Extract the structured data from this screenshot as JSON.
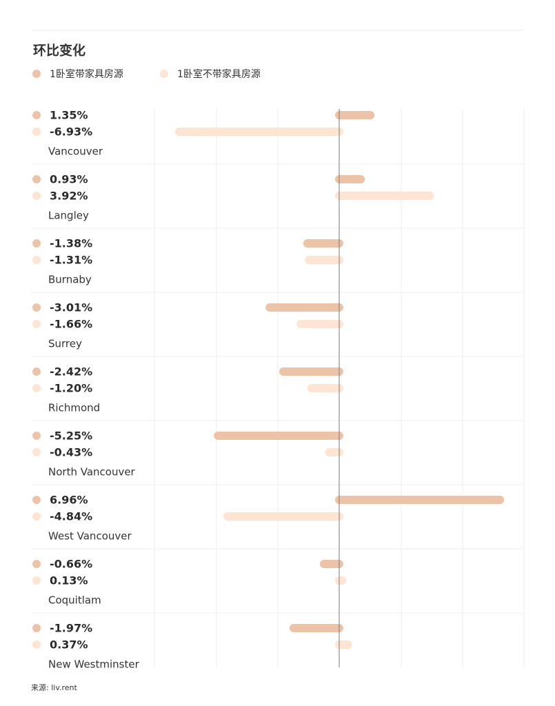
{
  "chart_data": {
    "type": "bar",
    "orientation": "horizontal",
    "title": "环比变化",
    "categories": [
      "Vancouver",
      "Langley",
      "Burnaby",
      "Surrey",
      "Richmond",
      "North Vancouver",
      "West Vancouver",
      "Coquitlam",
      "New Westminster"
    ],
    "series": [
      {
        "name": "1卧室带家具房源",
        "color": "#ecc3a7",
        "values": [
          1.35,
          0.93,
          -1.38,
          -3.01,
          -2.42,
          -5.25,
          6.96,
          -0.66,
          -1.97
        ],
        "value_labels": [
          "1.35%",
          "0.93%",
          "-1.38%",
          "-3.01%",
          "-2.42%",
          "-5.25%",
          "6.96%",
          "-0.66%",
          "-1.97%"
        ]
      },
      {
        "name": "1卧室不带家具房源",
        "color": "#fde4d3",
        "values": [
          -6.93,
          3.92,
          -1.31,
          -1.66,
          -1.2,
          -0.43,
          -4.84,
          0.13,
          0.37
        ],
        "value_labels": [
          "-6.93%",
          "3.92%",
          "-1.31%",
          "-1.66%",
          "-1.20%",
          "-0.43%",
          "-4.84%",
          "0.13%",
          "0.37%"
        ]
      }
    ],
    "xlim": [
      -8,
      8
    ],
    "source": "来源: liv.rent"
  }
}
